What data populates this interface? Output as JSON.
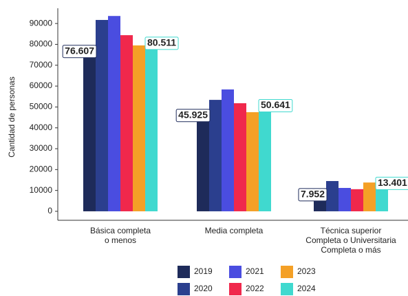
{
  "chart_data": {
    "type": "bar",
    "y_label": "Cantidad de personas",
    "categories": [
      "Básica completa\no menos",
      "Media completa",
      "Técnica superior\nCompleta o Universitaria\nCompleta o más"
    ],
    "series": [
      {
        "name": "2019",
        "color": "#1e2b5a",
        "values": [
          76607,
          45925,
          7952
        ],
        "value_labels": [
          "76.607",
          "45.925",
          "7.952"
        ]
      },
      {
        "name": "2020",
        "color": "#2b3f8e",
        "values": [
          91700,
          53400,
          14500
        ]
      },
      {
        "name": "2021",
        "color": "#4a4de0",
        "values": [
          93600,
          58400,
          11200
        ]
      },
      {
        "name": "2022",
        "color": "#f0284c",
        "values": [
          84400,
          51800,
          10600
        ]
      },
      {
        "name": "2023",
        "color": "#f4a026",
        "values": [
          79500,
          47500,
          13800
        ]
      },
      {
        "name": "2024",
        "color": "#40d9cf",
        "values": [
          80511,
          50641,
          13401
        ],
        "value_labels": [
          "80.511",
          "50.641",
          "13.401"
        ]
      }
    ],
    "ylim": [
      -4300,
      97300
    ],
    "yticks": [
      0,
      10000,
      20000,
      30000,
      40000,
      50000,
      60000,
      70000,
      80000,
      90000
    ],
    "grid": false
  }
}
